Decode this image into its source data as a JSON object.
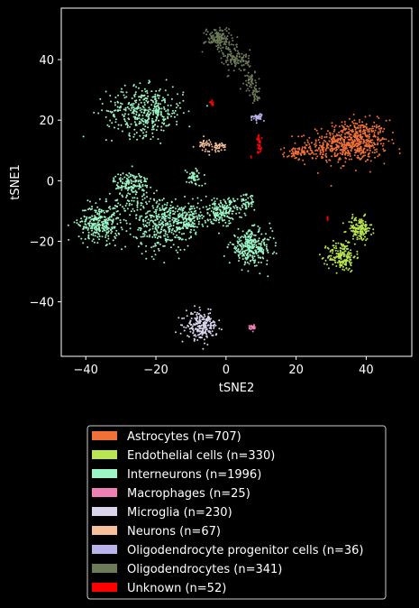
{
  "chart_data": {
    "type": "scatter",
    "title": "",
    "xlabel": "tSNE2",
    "ylabel": "tSNE1",
    "xlim": [
      -47,
      53
    ],
    "ylim": [
      -58,
      57
    ],
    "xticks": [
      -40,
      -20,
      0,
      20,
      40
    ],
    "yticks": [
      -40,
      -20,
      0,
      20,
      40
    ],
    "tick_labels": {
      "x": [
        "−40",
        "−20",
        "0",
        "20",
        "40"
      ],
      "y": [
        "−40",
        "−20",
        "0",
        "20",
        "40"
      ]
    },
    "background": "#000000",
    "grid": false,
    "legend_position": "below",
    "legend": [
      "Astrocytes (n=707)",
      "Endothelial cells (n=330)",
      "Interneurons (n=1996)",
      "Macrophages (n=25)",
      "Microglia (n=230)",
      "Neurons (n=67)",
      "Oligodendrocyte progenitor cells (n=36)",
      "Oligodendrocytes (n=341)",
      "Unknown (n=52)"
    ],
    "series": [
      {
        "name": "Astrocytes (n=707)",
        "color": "#f07138",
        "n": 707,
        "clusters": [
          {
            "cx": 37,
            "cy": 13,
            "sx": 4.5,
            "sy": 3.5,
            "n": 520
          },
          {
            "cx": 28,
            "cy": 11,
            "sx": 3.5,
            "sy": 2.2,
            "n": 130
          },
          {
            "cx": 20,
            "cy": 9,
            "sx": 1.8,
            "sy": 1.2,
            "n": 57
          }
        ]
      },
      {
        "name": "Endothelial cells (n=330)",
        "color": "#b8e550",
        "n": 330,
        "clusters": [
          {
            "cx": 38,
            "cy": -16,
            "sx": 1.8,
            "sy": 2.0,
            "n": 150
          },
          {
            "cx": 33,
            "cy": -25,
            "sx": 2.0,
            "sy": 2.5,
            "n": 180
          }
        ]
      },
      {
        "name": "Interneurons (n=1996)",
        "color": "#9bf5c6",
        "n": 1996,
        "clusters": [
          {
            "cx": -23,
            "cy": 23,
            "sx": 5.5,
            "sy": 4.0,
            "n": 400
          },
          {
            "cx": -36,
            "cy": -14,
            "sx": 3.0,
            "sy": 3.0,
            "n": 300
          },
          {
            "cx": -27,
            "cy": -1,
            "sx": 2.5,
            "sy": 2.0,
            "n": 150
          },
          {
            "cx": -18,
            "cy": -14,
            "sx": 4.0,
            "sy": 4.5,
            "n": 350
          },
          {
            "cx": -11,
            "cy": -13,
            "sx": 2.2,
            "sy": 2.5,
            "n": 150
          },
          {
            "cx": -9,
            "cy": 1,
            "sx": 1.2,
            "sy": 1.5,
            "n": 50
          },
          {
            "cx": -1,
            "cy": -10,
            "sx": 3.0,
            "sy": 2.0,
            "n": 200
          },
          {
            "cx": 7,
            "cy": -22,
            "sx": 3.0,
            "sy": 2.8,
            "n": 300
          },
          {
            "cx": 6,
            "cy": -7,
            "sx": 1.2,
            "sy": 1.2,
            "n": 40
          },
          {
            "cx": -28,
            "cy": -8,
            "sx": 3.0,
            "sy": 2.0,
            "n": 56
          }
        ]
      },
      {
        "name": "Macrophages (n=25)",
        "color": "#f07fb3",
        "n": 25,
        "clusters": [
          {
            "cx": 7.5,
            "cy": -48.5,
            "sx": 0.5,
            "sy": 0.5,
            "n": 25
          }
        ]
      },
      {
        "name": "Microglia (n=230)",
        "color": "#d9d4ec",
        "n": 230,
        "clusters": [
          {
            "cx": -7,
            "cy": -48,
            "sx": 2.2,
            "sy": 2.2,
            "n": 230
          }
        ]
      },
      {
        "name": "Neurons (n=67)",
        "color": "#f8c09a",
        "n": 67,
        "clusters": [
          {
            "cx": -6,
            "cy": 12,
            "sx": 1.2,
            "sy": 1.0,
            "n": 35
          },
          {
            "cx": -2,
            "cy": 11,
            "sx": 1.0,
            "sy": 1.0,
            "n": 32
          }
        ]
      },
      {
        "name": "Oligodendrocyte progenitor cells (n=36)",
        "color": "#b9b3eb",
        "n": 36,
        "clusters": [
          {
            "cx": 9,
            "cy": 21,
            "sx": 0.7,
            "sy": 0.6,
            "n": 36
          }
        ]
      },
      {
        "name": "Oligodendrocytes (n=341)",
        "color": "#6d7a58",
        "n": 341,
        "clusters": [
          {
            "cx": -2,
            "cy": 47,
            "sx": 2.0,
            "sy": 1.8,
            "n": 150
          },
          {
            "cx": 3,
            "cy": 40,
            "sx": 1.8,
            "sy": 2.0,
            "n": 110
          },
          {
            "cx": 7,
            "cy": 33,
            "sx": 0.8,
            "sy": 1.8,
            "n": 50
          },
          {
            "cx": 8.5,
            "cy": 28,
            "sx": 0.5,
            "sy": 1.5,
            "n": 31
          }
        ]
      },
      {
        "name": "Unknown (n=52)",
        "color": "#ff0000",
        "n": 52,
        "clusters": [
          {
            "cx": 9.5,
            "cy": 12,
            "sx": 0.4,
            "sy": 1.5,
            "n": 35
          },
          {
            "cx": -4,
            "cy": 25.5,
            "sx": 0.3,
            "sy": 0.5,
            "n": 10
          },
          {
            "cx": 29,
            "cy": -12.5,
            "sx": 0.3,
            "sy": 0.3,
            "n": 5
          },
          {
            "cx": 7,
            "cy": 8,
            "sx": 0.2,
            "sy": 0.2,
            "n": 2
          }
        ]
      }
    ]
  }
}
